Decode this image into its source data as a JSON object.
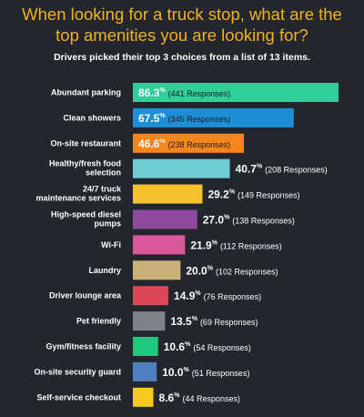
{
  "chart_data": {
    "type": "bar",
    "orientation": "horizontal",
    "title_lines": [
      "When looking for a truck stop, what are the",
      "top amenities you are looking for?"
    ],
    "subtitle": "Drivers picked their top 3 choices from a list of 13 items.",
    "unit": "%",
    "xlim": [
      0,
      86.3
    ],
    "categories": [
      [
        "Abundant parking"
      ],
      [
        "Clean showers"
      ],
      [
        "On-site restaurant"
      ],
      [
        "Healthy/fresh food",
        "selection"
      ],
      [
        "24/7 truck",
        "maintenance services"
      ],
      [
        "High-speed diesel",
        "pumps"
      ],
      [
        "Wi-Fi"
      ],
      [
        "Laundry"
      ],
      [
        "Driver lounge area"
      ],
      [
        "Pet friendly"
      ],
      [
        "Gym/fitness facility"
      ],
      [
        "On-site security guard"
      ],
      [
        "Self-service checkout"
      ]
    ],
    "values": [
      86.3,
      67.5,
      46.6,
      40.7,
      29.2,
      27.0,
      21.9,
      20.0,
      14.9,
      13.5,
      10.6,
      10.0,
      8.6
    ],
    "value_labels": [
      "86.3",
      "67.5",
      "46.6",
      "40.7",
      "29.2",
      "27.0",
      "21.9",
      "20.0",
      "14.9",
      "13.5",
      "10.6",
      "10.0",
      "8.6"
    ],
    "responses": [
      "(441 Responses)",
      "(345 Responses)",
      "(238 Responses)",
      "(208 Responses)",
      "(149 Responses)",
      "(138 Responses)",
      "(112 Responses)",
      "(102 Responses)",
      "(76 Responses)",
      "(69 Responses)",
      "(54 Responses)",
      "(51 Responses)",
      "(44 Responses)"
    ],
    "colors": [
      "#2ecf9a",
      "#1e8fd6",
      "#f5861e",
      "#6ecdd2",
      "#f5c22e",
      "#8e4a9e",
      "#d9579a",
      "#c8b27a",
      "#dc4657",
      "#7e8389",
      "#1fc87c",
      "#4e7fc1",
      "#f5c91d"
    ],
    "label_inside": [
      true,
      true,
      true,
      false,
      false,
      false,
      false,
      false,
      false,
      false,
      false,
      false,
      false
    ]
  }
}
